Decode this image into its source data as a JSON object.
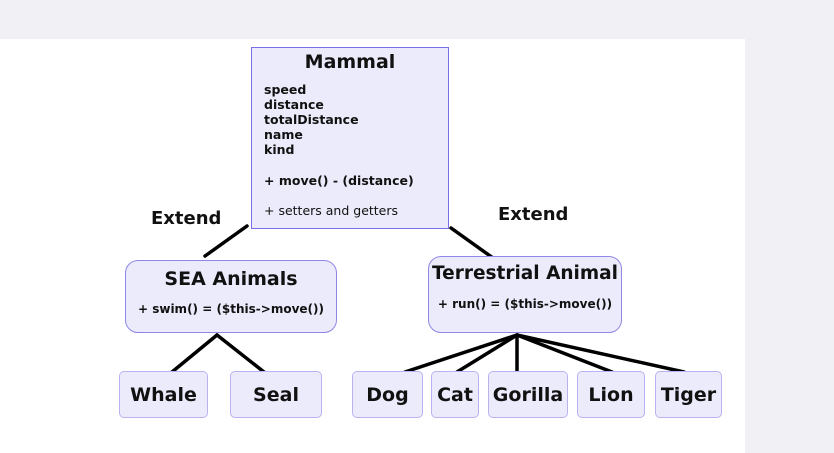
{
  "colors": {
    "canvas": "#f1f1f5",
    "panel": "#ffffff",
    "node_fill": "#ecebfb",
    "node_border": "#8f87e6",
    "connector": "#000000"
  },
  "diagram": {
    "root": {
      "title": "Mammal",
      "attributes": [
        "speed",
        "distance",
        "totalDistance",
        "name",
        "kind"
      ],
      "methods": [
        "+ move() - (distance)",
        "+ setters and getters"
      ]
    },
    "edge_labels": {
      "left": "Extend",
      "right": "Extend"
    },
    "sea": {
      "title": "SEA Animals",
      "method": "+ swim() = ($this->move())",
      "children": [
        "Whale",
        "Seal"
      ]
    },
    "terrestrial": {
      "title": "Terrestrial Animal",
      "method": "+ run() = ($this->move())",
      "children": [
        "Dog",
        "Cat",
        "Gorilla",
        "Lion",
        "Tiger"
      ]
    }
  }
}
